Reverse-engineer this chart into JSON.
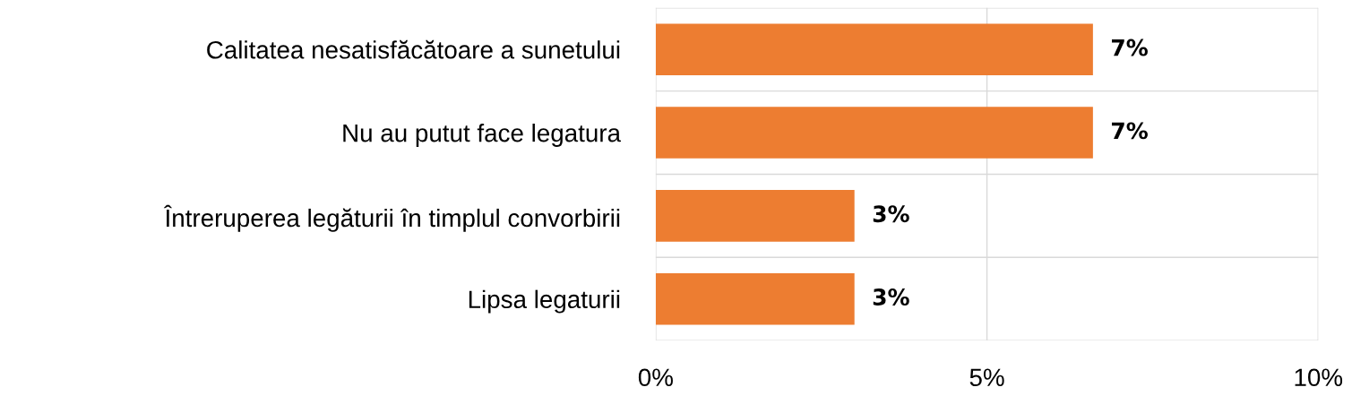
{
  "chart_data": {
    "type": "bar",
    "orientation": "horizontal",
    "categories": [
      "Calitatea nesatisfăcătoare a sunetului",
      "Nu au putut face legatura",
      "Întreruperea legăturii în timplul convorbirii",
      "Lipsa legaturii"
    ],
    "values": [
      6.6,
      6.6,
      3,
      3
    ],
    "value_labels": [
      "7%",
      "7%",
      "3%",
      "3%"
    ],
    "color": "#ed7d31",
    "xlim": [
      0,
      10
    ],
    "xticks": [
      {
        "value": 0,
        "label": "0%"
      },
      {
        "value": 5,
        "label": "5%"
      },
      {
        "value": 10,
        "label": "10%"
      }
    ],
    "grid": true
  }
}
